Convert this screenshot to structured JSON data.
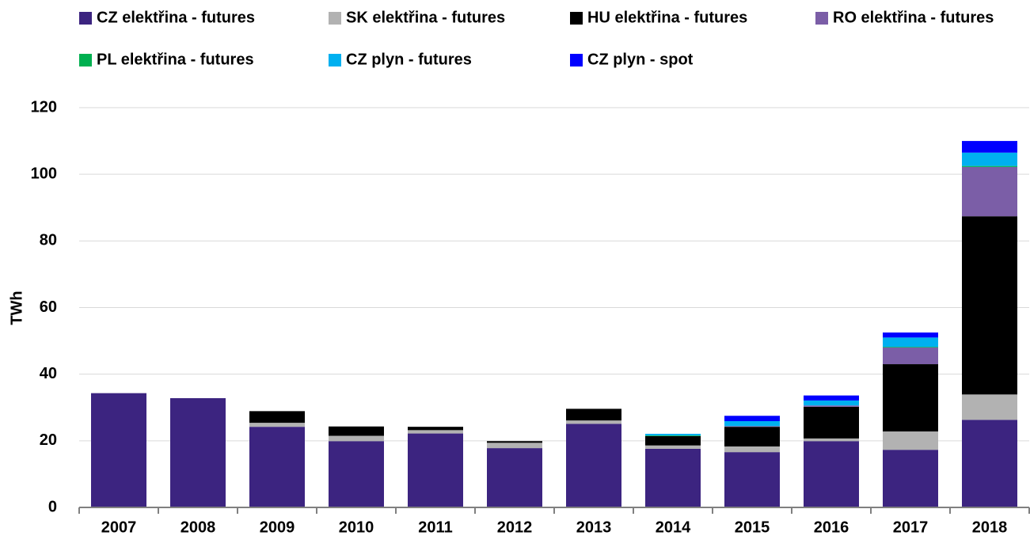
{
  "chart_data": {
    "type": "bar",
    "stacked": true,
    "y_label": "TWh",
    "categories": [
      "2007",
      "2008",
      "2009",
      "2010",
      "2011",
      "2012",
      "2013",
      "2014",
      "2015",
      "2016",
      "2017",
      "2018"
    ],
    "series": [
      {
        "name": "CZ elektřina - futures",
        "color": "#3c2480",
        "values": [
          34.3,
          32.8,
          24.2,
          19.9,
          22.2,
          17.8,
          25.1,
          17.6,
          16.6,
          19.9,
          17.3,
          26.3
        ]
      },
      {
        "name": "SK elektřina - futures",
        "color": "#b2b2b2",
        "values": [
          0,
          0,
          1.2,
          1.6,
          1.0,
          1.6,
          1.0,
          1.0,
          1.7,
          0.8,
          5.5,
          7.6
        ]
      },
      {
        "name": "HU elektřina - futures",
        "color": "#000000",
        "values": [
          0,
          0,
          3.5,
          2.8,
          1.0,
          0.5,
          3.5,
          2.8,
          5.9,
          9.5,
          20.2,
          53.5
        ]
      },
      {
        "name": "RO elektřina - futures",
        "color": "#7b5ea7",
        "values": [
          0,
          0,
          0,
          0,
          0,
          0,
          0,
          0,
          0.2,
          0.4,
          5.0,
          14.8
        ]
      },
      {
        "name": "PL elektřina - futures",
        "color": "#00b050",
        "values": [
          0,
          0,
          0,
          0,
          0,
          0,
          0,
          0.2,
          0,
          0,
          0.2,
          0.3
        ]
      },
      {
        "name": "CZ plyn - futures",
        "color": "#00b0f0",
        "values": [
          0,
          0,
          0,
          0,
          0,
          0,
          0,
          0.5,
          1.5,
          1.5,
          2.8,
          4.0
        ]
      },
      {
        "name": "CZ plyn - spot",
        "color": "#0000ff",
        "values": [
          0,
          0,
          0,
          0,
          0,
          0,
          0,
          0,
          1.6,
          1.5,
          1.5,
          3.5
        ]
      }
    ],
    "ylim": [
      0,
      120
    ],
    "yticks": [
      0,
      20,
      40,
      60,
      80,
      100,
      120
    ],
    "grid": true,
    "legend": "top"
  }
}
